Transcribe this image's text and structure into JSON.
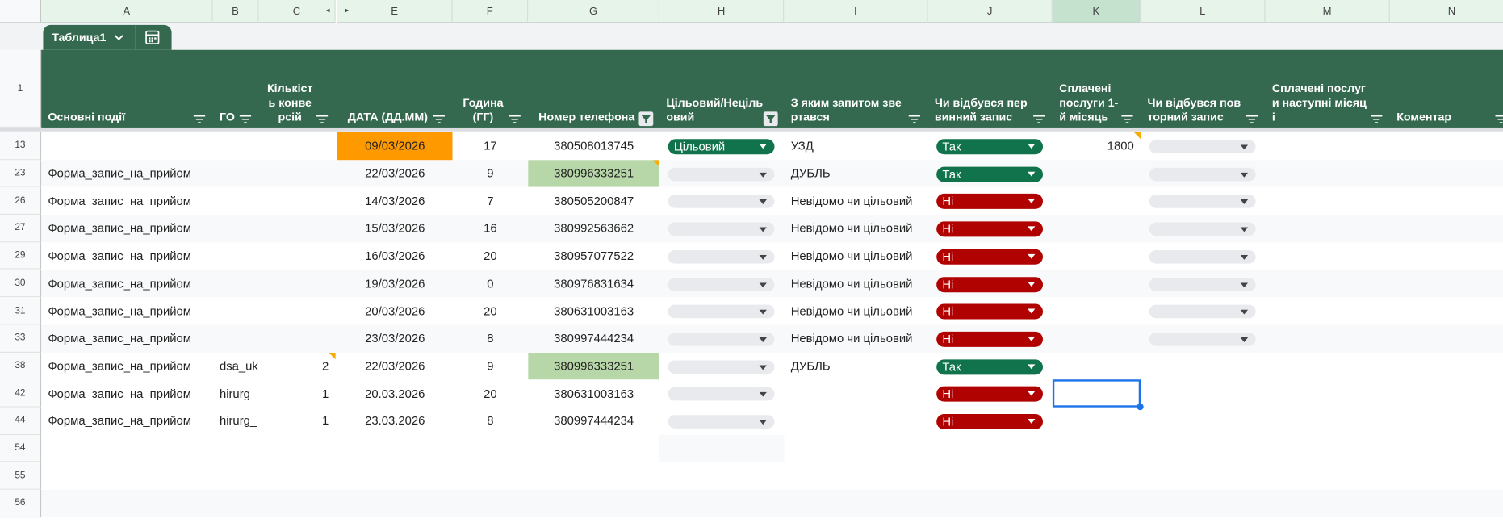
{
  "columns": [
    "A",
    "B",
    "C",
    "E",
    "F",
    "G",
    "H",
    "I",
    "J",
    "K",
    "L",
    "M",
    "N"
  ],
  "table_name": "Таблица1",
  "header_row_number": "1",
  "headers": [
    "Основні події",
    "ГО",
    "Кількість конверсій",
    "ДАТА (ДД.ММ)",
    "Година (ГГ)",
    "Номер телефона",
    "Цільовий/Нецільовий",
    "З яким запитом звертався",
    "Чи відбувся первинний запис",
    "Сплачені послуги 1-й місяць",
    "Чи відбувся повторний запис",
    "Сплачені послуги наступні місяці",
    "Коментар"
  ],
  "rows": [
    {
      "number": "13",
      "cells": [
        null,
        null,
        null,
        {
          "value": "09/03/2026",
          "fill": "#ff9900"
        },
        "17",
        "380508013745",
        {
          "value": "Цільовий",
          "chip": "#11734b"
        },
        "УЗД",
        {
          "value": "Так",
          "chip": "#11734b"
        },
        "1800",
        {
          "dropdown": true
        },
        null,
        null
      ]
    },
    {
      "number": "23",
      "cells": [
        "Форма_запис_на_прийом",
        null,
        null,
        "22/03/2026",
        "9",
        {
          "value": "380996333251",
          "fill": "#b7d7a8"
        },
        {
          "dropdown": true
        },
        "ДУБЛЬ",
        {
          "value": "Так",
          "chip": "#11734b"
        },
        null,
        {
          "dropdown": true
        },
        null,
        null
      ]
    },
    {
      "number": "26",
      "cells": [
        "Форма_запис_на_прийом",
        null,
        null,
        "14/03/2026",
        "7",
        "380505200847",
        {
          "dropdown": true
        },
        "Невідомо чи цільовий",
        {
          "value": "Ні",
          "chip": "#b10202"
        },
        null,
        {
          "dropdown": true
        },
        null,
        null
      ]
    },
    {
      "number": "27",
      "cells": [
        "Форма_запис_на_прийом",
        null,
        null,
        "15/03/2026",
        "16",
        "380992563662",
        {
          "dropdown": true
        },
        "Невідомо чи цільовий",
        {
          "value": "Ні",
          "chip": "#b10202"
        },
        null,
        {
          "dropdown": true
        },
        null,
        null
      ]
    },
    {
      "number": "29",
      "cells": [
        "Форма_запис_на_прийом",
        null,
        null,
        "16/03/2026",
        "20",
        "380957077522",
        {
          "dropdown": true
        },
        "Невідомо чи цільовий",
        {
          "value": "Ні",
          "chip": "#b10202"
        },
        null,
        {
          "dropdown": true
        },
        null,
        null
      ]
    },
    {
      "number": "30",
      "cells": [
        "Форма_запис_на_прийом",
        null,
        null,
        "19/03/2026",
        "0",
        "380976831634",
        {
          "dropdown": true
        },
        "Невідомо чи цільовий",
        {
          "value": "Ні",
          "chip": "#b10202"
        },
        null,
        {
          "dropdown": true
        },
        null,
        null
      ]
    },
    {
      "number": "31",
      "cells": [
        "Форма_запис_на_прийом",
        null,
        null,
        "20/03/2026",
        "20",
        "380631003163",
        {
          "dropdown": true
        },
        "Невідомо чи цільовий",
        {
          "value": "Ні",
          "chip": "#b10202"
        },
        null,
        {
          "dropdown": true
        },
        null,
        null
      ]
    },
    {
      "number": "33",
      "cells": [
        "Форма_запис_на_прийом",
        null,
        null,
        "23/03/2026",
        "8",
        "380997444234",
        {
          "dropdown": true
        },
        "Невідомо чи цільовий",
        {
          "value": "Ні",
          "chip": "#b10202"
        },
        null,
        {
          "dropdown": true
        },
        null,
        null
      ]
    },
    {
      "number": "38",
      "cells": [
        "Форма_запис_на_прийом",
        "dsa_uk",
        "2",
        "22/03/2026",
        "9",
        {
          "value": "380996333251",
          "fill": "#b7d7a8"
        },
        {
          "dropdown": true
        },
        "ДУБЛЬ",
        {
          "value": "Так",
          "chip": "#11734b"
        },
        null,
        null,
        null,
        null
      ]
    },
    {
      "number": "42",
      "cells": [
        "Форма_запис_на_прийом",
        "hirurg_",
        "1",
        "20.03.2026",
        "20",
        "380631003163",
        {
          "dropdown": true
        },
        null,
        {
          "value": "Ні",
          "chip": "#b10202"
        },
        null,
        null,
        null,
        null
      ]
    },
    {
      "number": "44",
      "cells": [
        "Форма_запис_на_прийом",
        "hirurg_",
        "1",
        "23.03.2026",
        "8",
        "380997444234",
        {
          "dropdown": true
        },
        null,
        {
          "value": "Ні",
          "chip": "#b10202"
        },
        null,
        null,
        null,
        null
      ]
    },
    {
      "number": "54",
      "cells": [
        null,
        null,
        null,
        null,
        null,
        null,
        null,
        null,
        null,
        null,
        null,
        null,
        null
      ]
    },
    {
      "number": "55",
      "cells": [
        null,
        null,
        null,
        null,
        null,
        null,
        null,
        null,
        null,
        null,
        null,
        null,
        null
      ]
    },
    {
      "number": "56",
      "cells": [
        null,
        null,
        null,
        null,
        null,
        null,
        null,
        null,
        null,
        null,
        null,
        null,
        null
      ]
    }
  ]
}
